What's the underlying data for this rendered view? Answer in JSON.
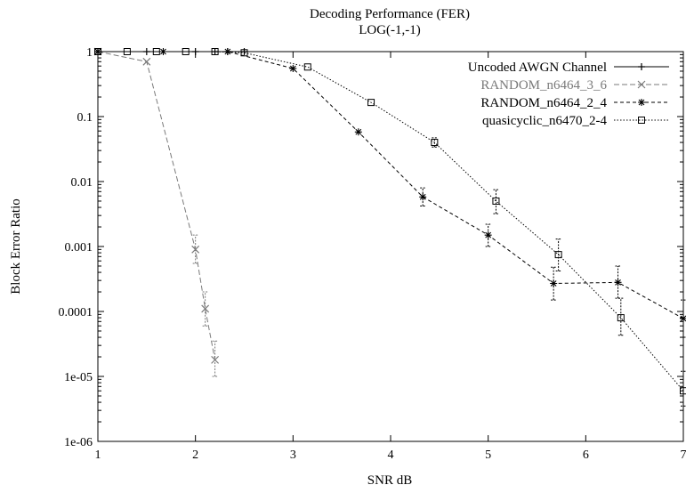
{
  "chart_data": {
    "type": "line",
    "title": "Decoding Performance (FER)",
    "subtitle": "LOG(-1,-1)",
    "xlabel": "SNR dB",
    "ylabel": "Block Error Ratio",
    "xlim": [
      1,
      7
    ],
    "ylim": [
      1e-06,
      1
    ],
    "y_scale": "log",
    "grid": false,
    "legend_position": "top-right",
    "x_ticks": [
      "1",
      "2",
      "3",
      "4",
      "5",
      "6",
      "7"
    ],
    "y_ticks": [
      "1e-06",
      "1e-05",
      "0.0001",
      "0.001",
      "0.01",
      "0.1",
      "1"
    ],
    "series": [
      {
        "name": "Uncoded AWGN Channel",
        "marker": "plus",
        "dash": "solid",
        "color": "#000000",
        "points": [
          {
            "x": 1.0,
            "y": 1
          },
          {
            "x": 1.5,
            "y": 1
          },
          {
            "x": 2.0,
            "y": 1
          },
          {
            "x": 2.2,
            "y": 1
          },
          {
            "x": 2.33,
            "y": 1
          },
          {
            "x": 2.5,
            "y": 1
          }
        ]
      },
      {
        "name": "RANDOM_n6464_3_6",
        "marker": "x",
        "dash": "dashed",
        "color": "#7a7a7a",
        "points": [
          {
            "x": 1.0,
            "y": 1
          },
          {
            "x": 1.5,
            "y": 0.7
          },
          {
            "x": 2.0,
            "y": 0.0009,
            "err": [
              0.00055,
              0.0015
            ]
          },
          {
            "x": 2.1,
            "y": 0.00011,
            "err": [
              6e-05,
              0.0002
            ]
          },
          {
            "x": 2.2,
            "y": 1.8e-05,
            "err": [
              1e-05,
              3.5e-05
            ]
          }
        ]
      },
      {
        "name": "RANDOM_n6464_2_4",
        "marker": "star",
        "dash": "short-dash",
        "color": "#000000",
        "points": [
          {
            "x": 1.0,
            "y": 1
          },
          {
            "x": 1.67,
            "y": 1
          },
          {
            "x": 2.33,
            "y": 1
          },
          {
            "x": 3.0,
            "y": 0.55
          },
          {
            "x": 3.67,
            "y": 0.058
          },
          {
            "x": 4.33,
            "y": 0.0058,
            "err": [
              0.0042,
              0.008
            ]
          },
          {
            "x": 5.0,
            "y": 0.0015,
            "err": [
              0.001,
              0.0022
            ]
          },
          {
            "x": 5.67,
            "y": 0.00027,
            "err": [
              0.00015,
              0.00048
            ]
          },
          {
            "x": 6.33,
            "y": 0.00028,
            "err": [
              0.00016,
              0.0005
            ]
          },
          {
            "x": 7.0,
            "y": 7.8e-05,
            "err": [
              4e-05,
              0.00015
            ]
          }
        ]
      },
      {
        "name": "quasicyclic_n6470_2-4",
        "marker": "square",
        "dash": "dotted",
        "color": "#000000",
        "points": [
          {
            "x": 1.0,
            "y": 1
          },
          {
            "x": 1.3,
            "y": 1
          },
          {
            "x": 1.6,
            "y": 1
          },
          {
            "x": 1.9,
            "y": 1
          },
          {
            "x": 2.2,
            "y": 1
          },
          {
            "x": 2.5,
            "y": 0.96
          },
          {
            "x": 3.15,
            "y": 0.58
          },
          {
            "x": 3.8,
            "y": 0.165
          },
          {
            "x": 4.45,
            "y": 0.04,
            "err": [
              0.034,
              0.047
            ]
          },
          {
            "x": 5.08,
            "y": 0.005,
            "err": [
              0.0032,
              0.0075
            ]
          },
          {
            "x": 5.72,
            "y": 0.00075,
            "err": [
              0.00042,
              0.0013
            ]
          },
          {
            "x": 6.36,
            "y": 8e-05,
            "err": [
              4.3e-05,
              0.00016
            ]
          },
          {
            "x": 7.0,
            "y": 6e-06,
            "err": [
              3.5e-06,
              1.2e-05
            ]
          }
        ]
      }
    ]
  }
}
